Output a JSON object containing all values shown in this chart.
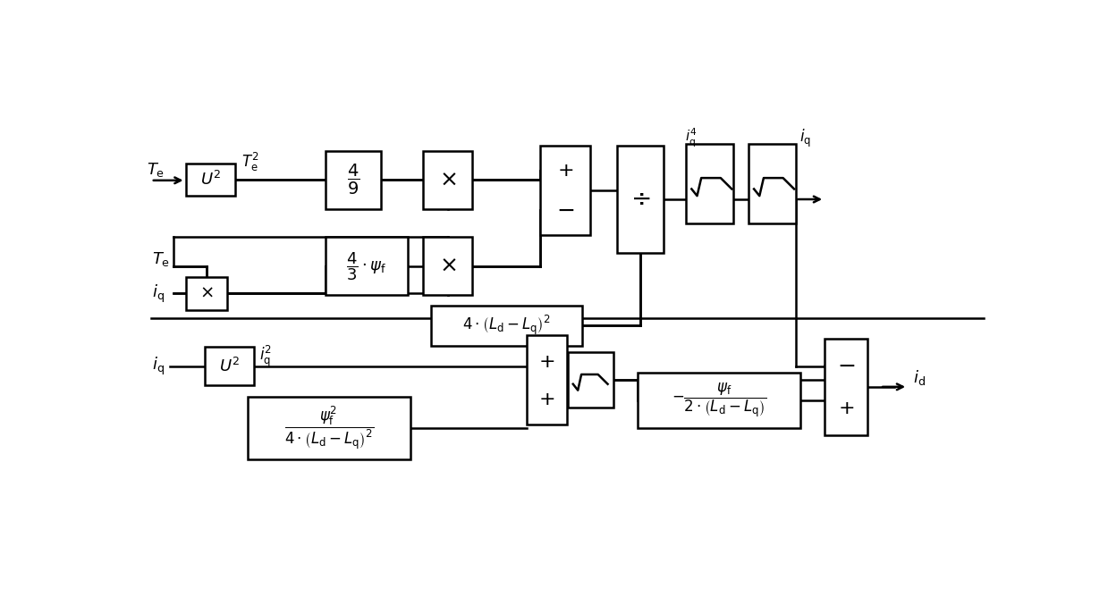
{
  "bg_color": "#ffffff",
  "line_color": "#000000",
  "fig_width": 12.39,
  "fig_height": 6.68,
  "dpi": 100
}
